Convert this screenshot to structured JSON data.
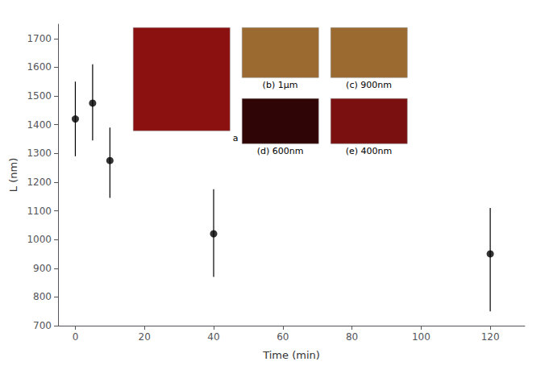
{
  "chart_data": {
    "type": "scatter",
    "xlabel": "Time (min)",
    "ylabel": "L (nm)",
    "x": [
      0,
      5,
      10,
      40,
      120
    ],
    "values": [
      1420,
      1475,
      1275,
      1020,
      950
    ],
    "yerr_lower": [
      130,
      130,
      130,
      150,
      200
    ],
    "yerr_upper": [
      130,
      135,
      115,
      155,
      160
    ],
    "color": "black",
    "marker": "circle",
    "xlim": [
      -5,
      130
    ],
    "xticks": [
      0,
      20,
      40,
      60,
      80,
      100,
      120
    ],
    "ylim": [
      700,
      1750
    ],
    "yticks": [
      700,
      800,
      900,
      1000,
      1100,
      1200,
      1300,
      1400,
      1500,
      1600,
      1700
    ],
    "grid": false,
    "annotations": [
      {
        "text": "a",
        "color": "#8B1010"
      },
      {
        "text": "(b) 1μm",
        "color": "#9B6A30"
      },
      {
        "text": "(c) 900nm",
        "color": "#9B6A30"
      },
      {
        "text": "(d) 600nm",
        "color": "#300505"
      },
      {
        "text": "(e) 400nm",
        "color": "#7a1010"
      }
    ]
  }
}
